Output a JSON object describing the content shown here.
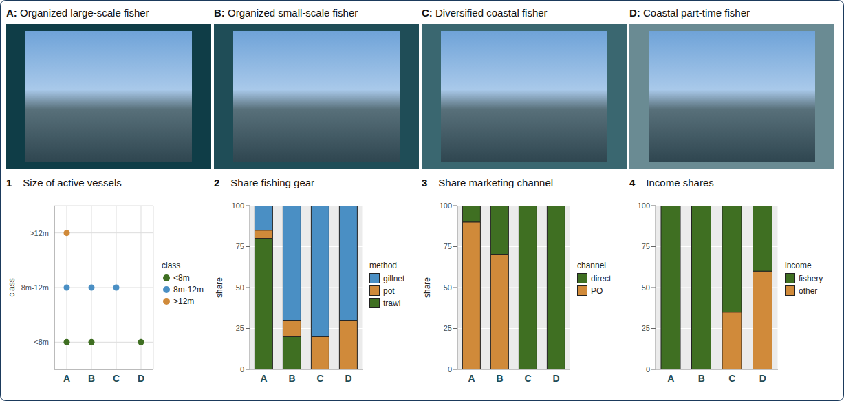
{
  "photo_panels": [
    {
      "letter": "A:",
      "title": "Organized large-scale fisher"
    },
    {
      "letter": "B:",
      "title": "Organized small-scale fisher"
    },
    {
      "letter": "C:",
      "title": "Diversified coastal fisher"
    },
    {
      "letter": "D:",
      "title": "Coastal part-time fisher"
    }
  ],
  "chart_data": [
    {
      "number": "1",
      "type": "scatter",
      "title": "Size of active vessels",
      "categories": [
        "A",
        "B",
        "C",
        "D"
      ],
      "y_categories": [
        "<8m",
        "8m-12m",
        ">12m"
      ],
      "ylabel": "class",
      "legend_title": "class",
      "legend": "right",
      "grid": true,
      "series": [
        {
          "name": "<8m",
          "color": "#3f6f22",
          "values": [
            "<8m",
            "<8m",
            null,
            "<8m"
          ]
        },
        {
          "name": "8m-12m",
          "color": "#4a8fc4",
          "values": [
            "8m-12m",
            "8m-12m",
            "8m-12m",
            null
          ]
        },
        {
          "name": ">12m",
          "color": "#d08a3a",
          "values": [
            ">12m",
            null,
            null,
            null
          ]
        }
      ]
    },
    {
      "number": "2",
      "type": "bar",
      "title": "Share fishing gear",
      "categories": [
        "A",
        "B",
        "C",
        "D"
      ],
      "stacked": true,
      "ylim": [
        0,
        100
      ],
      "yticks": [
        0,
        25,
        50,
        75,
        100
      ],
      "ylabel": "share",
      "legend_title": "method",
      "legend": "right",
      "grid": true,
      "series": [
        {
          "name": "gillnet",
          "color": "#4a8fc4",
          "values": [
            15,
            70,
            80,
            70
          ]
        },
        {
          "name": "pot",
          "color": "#d08a3a",
          "values": [
            5,
            10,
            20,
            30
          ]
        },
        {
          "name": "trawl",
          "color": "#3f6f22",
          "values": [
            80,
            20,
            0,
            0
          ]
        }
      ]
    },
    {
      "number": "3",
      "type": "bar",
      "title": "Share marketing channel",
      "categories": [
        "A",
        "B",
        "C",
        "D"
      ],
      "stacked": true,
      "ylim": [
        0,
        100
      ],
      "yticks": [
        0,
        25,
        50,
        75,
        100
      ],
      "ylabel": "share",
      "legend_title": "channel",
      "legend": "right",
      "grid": true,
      "series": [
        {
          "name": "direct",
          "color": "#3f6f22",
          "values": [
            10,
            30,
            100,
            100
          ]
        },
        {
          "name": "PO",
          "color": "#d08a3a",
          "values": [
            90,
            70,
            0,
            0
          ]
        }
      ]
    },
    {
      "number": "4",
      "type": "bar",
      "title": "Income shares",
      "categories": [
        "A",
        "B",
        "C",
        "D"
      ],
      "stacked": true,
      "ylim": [
        0,
        100
      ],
      "yticks": [
        0,
        25,
        50,
        75,
        100
      ],
      "legend_title": "income",
      "legend": "right",
      "grid": true,
      "series": [
        {
          "name": "fishery",
          "color": "#3f6f22",
          "values": [
            100,
            100,
            65,
            40
          ]
        },
        {
          "name": "other",
          "color": "#d08a3a",
          "values": [
            0,
            0,
            35,
            60
          ]
        }
      ]
    }
  ]
}
